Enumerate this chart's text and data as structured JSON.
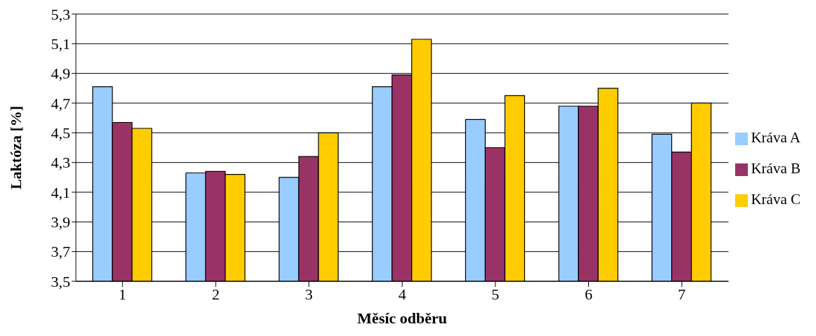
{
  "chart_data": {
    "type": "bar",
    "xlabel": "Měsíc odběru",
    "ylabel": "Laktóza [%]",
    "categories": [
      "1",
      "2",
      "3",
      "4",
      "5",
      "6",
      "7"
    ],
    "series": [
      {
        "name": "Kráva A",
        "color": "#99ccff",
        "values": [
          4.81,
          4.23,
          4.2,
          4.81,
          4.59,
          4.68,
          4.49
        ]
      },
      {
        "name": "Kráva B",
        "color": "#993366",
        "values": [
          4.57,
          4.24,
          4.34,
          4.89,
          4.4,
          4.68,
          4.37
        ]
      },
      {
        "name": "Kráva C",
        "color": "#ffcc00",
        "values": [
          4.53,
          4.22,
          4.5,
          5.13,
          4.75,
          4.8,
          4.7
        ]
      }
    ],
    "ylim": [
      3.5,
      5.3
    ],
    "yticks": [
      {
        "value": 3.5,
        "label": "3,5"
      },
      {
        "value": 3.7,
        "label": "3,7"
      },
      {
        "value": 3.9,
        "label": "3,9"
      },
      {
        "value": 4.1,
        "label": "4,1"
      },
      {
        "value": 4.3,
        "label": "4,3"
      },
      {
        "value": 4.5,
        "label": "4,5"
      },
      {
        "value": 4.7,
        "label": "4,7"
      },
      {
        "value": 4.9,
        "label": "4,9"
      },
      {
        "value": 5.1,
        "label": "5,1"
      },
      {
        "value": 5.3,
        "label": "5,3"
      }
    ],
    "grid": "y",
    "legend": "right"
  }
}
